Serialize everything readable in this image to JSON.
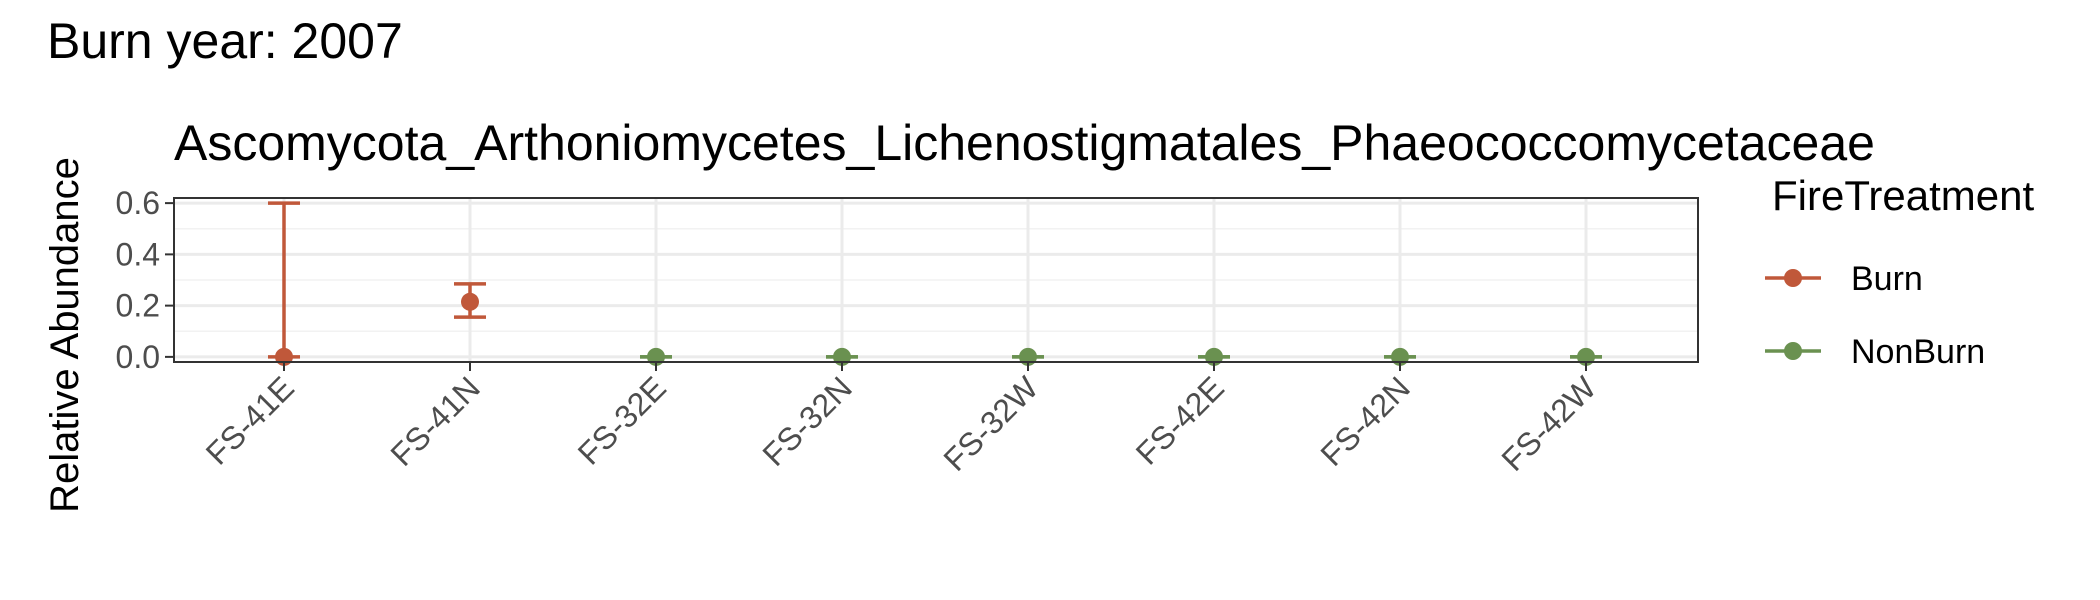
{
  "figure": {
    "title": "Burn year: 2007"
  },
  "chart_data": {
    "type": "scatter",
    "title": "Ascomycota_Arthoniomycetes_Lichenostigmatales_Phaeococcomycetaceae",
    "xlabel": "",
    "ylabel": "Relative Abundance",
    "categories": [
      "FS-41E",
      "FS-41N",
      "FS-32E",
      "FS-32N",
      "FS-32W",
      "FS-42E",
      "FS-42N",
      "FS-42W"
    ],
    "ylim": [
      -0.02,
      0.62
    ],
    "yticks": [
      0.0,
      0.2,
      0.4,
      0.6
    ],
    "ytick_labels": [
      "0.0",
      "0.2",
      "0.4",
      "0.6"
    ],
    "grid": true,
    "legend": {
      "title": "FireTreatment",
      "position": "right"
    },
    "series": [
      {
        "name": "Burn",
        "color": "#C0583A",
        "points": [
          {
            "category": "FS-41E",
            "y": 0.0,
            "ymin": 0.0,
            "ymax": 0.6
          },
          {
            "category": "FS-41N",
            "y": 0.215,
            "ymin": 0.155,
            "ymax": 0.285
          }
        ]
      },
      {
        "name": "NonBurn",
        "color": "#6A9150",
        "points": [
          {
            "category": "FS-32E",
            "y": 0.0,
            "ymin": 0.0,
            "ymax": 0.0
          },
          {
            "category": "FS-32N",
            "y": 0.0,
            "ymin": 0.0,
            "ymax": 0.0
          },
          {
            "category": "FS-32W",
            "y": 0.0,
            "ymin": 0.0,
            "ymax": 0.0
          },
          {
            "category": "FS-42E",
            "y": 0.0,
            "ymin": 0.0,
            "ymax": 0.0
          },
          {
            "category": "FS-42N",
            "y": 0.0,
            "ymin": 0.0,
            "ymax": 0.0
          },
          {
            "category": "FS-42W",
            "y": 0.0,
            "ymin": 0.0,
            "ymax": 0.0
          }
        ]
      }
    ]
  }
}
